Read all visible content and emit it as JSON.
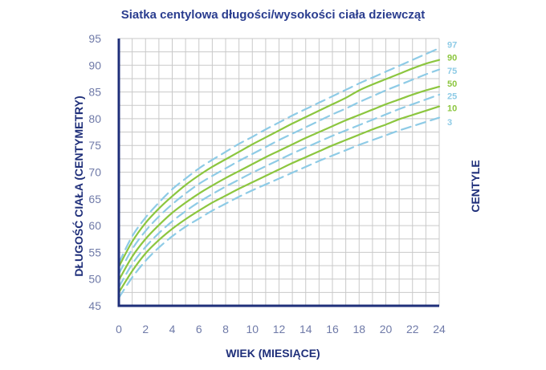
{
  "chart_data": {
    "type": "line",
    "title": "Siatka centylowa długości/wysokości ciała dziewcząt",
    "xlabel": "WIEK (MIESIĄCE)",
    "ylabel": "DŁUGOŚĆ CIAŁA (CENTYMETRY)",
    "legend_title": "CENTYLE",
    "legend_placement": "right",
    "xlim": [
      0,
      24
    ],
    "ylim": [
      45,
      95
    ],
    "x_ticks": [
      0,
      2,
      4,
      6,
      8,
      10,
      12,
      14,
      16,
      18,
      20,
      22,
      24
    ],
    "y_ticks": [
      45,
      50,
      55,
      60,
      65,
      70,
      75,
      80,
      85,
      90,
      95
    ],
    "grid": true,
    "colors": {
      "solid": "#8cc63f",
      "dashed": "#8ecbe6",
      "axis": "#1f2f7a",
      "grid": "#c9c9c9",
      "title": "#2a3d8f"
    },
    "x": [
      0,
      1,
      2,
      3,
      4,
      5,
      6,
      7,
      8,
      9,
      10,
      11,
      12,
      13,
      14,
      15,
      16,
      17,
      18,
      19,
      20,
      21,
      22,
      23,
      24
    ],
    "series": [
      {
        "name": "97",
        "style": "dashed",
        "values": [
          53.0,
          58.0,
          61.5,
          64.3,
          66.8,
          68.8,
          70.7,
          72.3,
          73.8,
          75.3,
          76.6,
          78.0,
          79.3,
          80.6,
          81.8,
          83.0,
          84.2,
          85.4,
          86.6,
          87.7,
          88.8,
          89.9,
          91.0,
          92.1,
          93.2
        ]
      },
      {
        "name": "90",
        "style": "solid",
        "values": [
          52.3,
          57.0,
          60.5,
          63.2,
          65.5,
          67.6,
          69.4,
          71.0,
          72.4,
          73.8,
          75.2,
          76.5,
          77.8,
          79.1,
          80.3,
          81.5,
          82.7,
          83.9,
          85.3,
          86.4,
          87.4,
          88.4,
          89.4,
          90.3,
          91.0
        ]
      },
      {
        "name": "75",
        "style": "dashed",
        "values": [
          51.0,
          55.6,
          59.0,
          61.7,
          64.0,
          66.0,
          67.8,
          69.3,
          70.7,
          72.1,
          73.4,
          74.7,
          76.0,
          77.2,
          78.4,
          79.6,
          80.8,
          81.9,
          83.1,
          84.2,
          85.3,
          86.3,
          87.3,
          88.3,
          89.2
        ]
      },
      {
        "name": "50",
        "style": "solid",
        "values": [
          49.8,
          54.2,
          57.5,
          60.1,
          62.4,
          64.3,
          66.0,
          67.5,
          68.9,
          70.2,
          71.5,
          72.8,
          74.0,
          75.2,
          76.4,
          77.5,
          78.6,
          79.7,
          80.7,
          81.7,
          82.7,
          83.6,
          84.5,
          85.3,
          86.0
        ]
      },
      {
        "name": "25",
        "style": "dashed",
        "values": [
          48.5,
          52.8,
          56.0,
          58.6,
          60.8,
          62.7,
          64.4,
          65.9,
          67.3,
          68.6,
          69.9,
          71.1,
          72.3,
          73.5,
          74.6,
          75.7,
          76.8,
          77.8,
          78.8,
          79.8,
          80.8,
          81.8,
          82.7,
          83.6,
          84.5
        ]
      },
      {
        "name": "10",
        "style": "solid",
        "values": [
          47.5,
          51.5,
          54.8,
          57.3,
          59.4,
          61.2,
          62.8,
          64.3,
          65.6,
          66.9,
          68.1,
          69.3,
          70.5,
          71.7,
          72.8,
          73.9,
          75.0,
          76.0,
          77.0,
          78.0,
          78.9,
          79.9,
          80.7,
          81.5,
          82.3
        ]
      },
      {
        "name": "3",
        "style": "dashed",
        "values": [
          46.5,
          50.3,
          53.4,
          55.9,
          58.0,
          59.8,
          61.3,
          62.8,
          64.1,
          65.4,
          66.6,
          67.7,
          68.8,
          69.9,
          71.0,
          72.1,
          73.1,
          74.1,
          75.1,
          76.0,
          76.9,
          77.8,
          78.6,
          79.4,
          80.2
        ]
      }
    ],
    "right_labels": [
      {
        "text": "97",
        "color": "#8ecbe6",
        "y": 93.9
      },
      {
        "text": "90",
        "color": "#8cc63f",
        "y": 91.5
      },
      {
        "text": "75",
        "color": "#8ecbe6",
        "y": 89.0
      },
      {
        "text": "50",
        "color": "#8cc63f",
        "y": 86.6
      },
      {
        "text": "25",
        "color": "#8ecbe6",
        "y": 84.3
      },
      {
        "text": "10",
        "color": "#8cc63f",
        "y": 82.0
      },
      {
        "text": "3",
        "color": "#8ecbe6",
        "y": 79.4
      }
    ]
  }
}
